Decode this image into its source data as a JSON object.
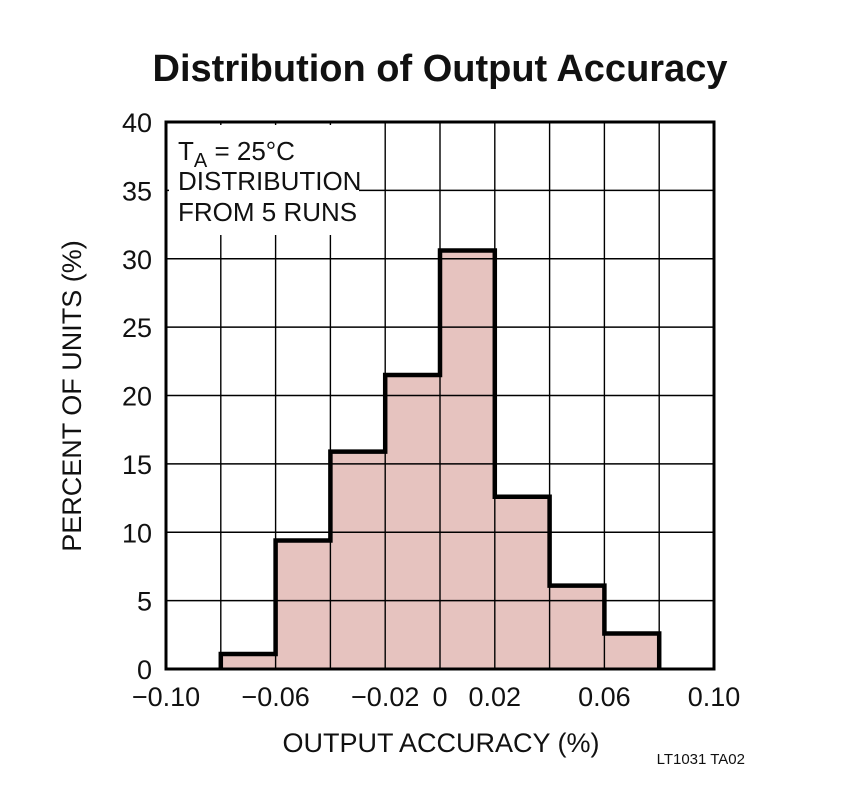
{
  "chart_data": {
    "type": "bar",
    "title": "Distribution of Output Accuracy",
    "xlabel": "OUTPUT ACCURACY (%)",
    "ylabel": "PERCENT OF UNITS (%)",
    "xlim": [
      -0.1,
      0.1
    ],
    "ylim": [
      0,
      40
    ],
    "grid": true,
    "x_tick_values": [
      -0.1,
      -0.08,
      -0.06,
      -0.04,
      -0.02,
      0,
      0.02,
      0.04,
      0.06,
      0.08,
      0.1
    ],
    "x_tick_labels": [
      "−0.10",
      "",
      "−0.06",
      "",
      "−0.02",
      "0",
      "0.02",
      "",
      "0.06",
      "",
      "0.10"
    ],
    "y_tick_values": [
      0,
      5,
      10,
      15,
      20,
      25,
      30,
      35,
      40
    ],
    "y_tick_labels": [
      "0",
      "5",
      "10",
      "15",
      "20",
      "25",
      "30",
      "35",
      "40"
    ],
    "bins": [
      {
        "x0": -0.08,
        "x1": -0.06,
        "value": 1.1
      },
      {
        "x0": -0.06,
        "x1": -0.04,
        "value": 9.4
      },
      {
        "x0": -0.04,
        "x1": -0.02,
        "value": 15.9
      },
      {
        "x0": -0.02,
        "x1": 0.0,
        "value": 21.5
      },
      {
        "x0": 0.0,
        "x1": 0.02,
        "value": 30.6
      },
      {
        "x0": 0.02,
        "x1": 0.04,
        "value": 12.6
      },
      {
        "x0": 0.04,
        "x1": 0.06,
        "value": 6.1
      },
      {
        "x0": 0.06,
        "x1": 0.08,
        "value": 2.6
      }
    ],
    "annotation": {
      "line1_main": "T",
      "line1_sub": "A",
      "line1_rest": " = 25°C",
      "line2": "DISTRIBUTION",
      "line3": "FROM 5 RUNS"
    },
    "colors": {
      "fill": "#e6c3bf",
      "outline": "#000000",
      "grid": "#000000"
    }
  },
  "figure_code": "LT1031 TA02"
}
